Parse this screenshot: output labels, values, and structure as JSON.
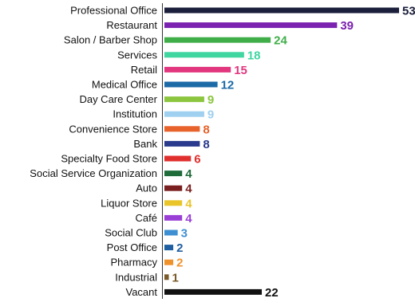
{
  "chart_data": {
    "type": "bar",
    "orientation": "horizontal",
    "categories": [
      "Professional Office",
      "Restaurant",
      "Salon / Barber Shop",
      "Services",
      "Retail",
      "Medical Office",
      "Day Care Center",
      "Institution",
      "Convenience Store",
      "Bank",
      "Specialty Food Store",
      "Social Service Organization",
      "Auto",
      "Liquor Store",
      "Café",
      "Social Club",
      "Post Office",
      "Pharmacy",
      "Industrial",
      "Vacant"
    ],
    "values": [
      53,
      39,
      24,
      18,
      15,
      12,
      9,
      9,
      8,
      8,
      6,
      4,
      4,
      4,
      4,
      3,
      2,
      2,
      1,
      22
    ],
    "colors": [
      "#1b1f3b",
      "#7b22b0",
      "#3fae49",
      "#3fd6a0",
      "#e2367f",
      "#1c6aa6",
      "#8cc63f",
      "#9fd0ef",
      "#e8622b",
      "#2a3a8c",
      "#e0302e",
      "#1f6b3a",
      "#7a1f1f",
      "#e9c52a",
      "#9a3fd6",
      "#3d8fd1",
      "#1f5ea0",
      "#f0922b",
      "#7a5a2a",
      "#111111"
    ],
    "xlim": [
      0,
      53
    ],
    "title": "",
    "xlabel": "",
    "ylabel": "",
    "grid": false,
    "legend": "none"
  }
}
